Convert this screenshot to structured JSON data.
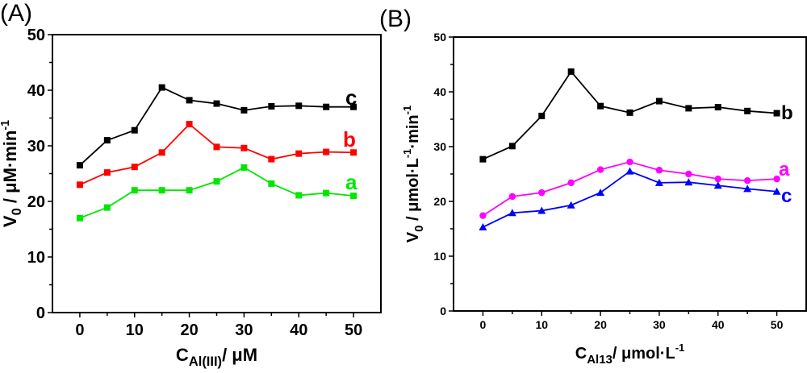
{
  "chart_data": [
    {
      "type": "line",
      "panel_label": "(A)",
      "xlabel": {
        "main": "C",
        "sub": "Al(III)",
        "rest": "/ μM"
      },
      "ylabel": {
        "main": "V",
        "sub": "0",
        "rest": " / μM·min",
        "sup": "-1"
      },
      "xlim": [
        -5,
        55
      ],
      "ylim": [
        0,
        50
      ],
      "xticks": [
        0,
        10,
        20,
        30,
        40,
        50
      ],
      "yticks": [
        0,
        10,
        20,
        30,
        40,
        50
      ],
      "x": [
        0,
        5,
        10,
        15,
        20,
        25,
        30,
        35,
        40,
        45,
        50
      ],
      "series": [
        {
          "name": "c",
          "color": "#000000",
          "marker": "square",
          "values": [
            26.5,
            31,
            32.8,
            40.5,
            38.2,
            37.6,
            36.4,
            37.1,
            37.2,
            37,
            37
          ]
        },
        {
          "name": "b",
          "color": "#ff0000",
          "marker": "square",
          "values": [
            23,
            25.2,
            26.2,
            28.8,
            33.9,
            29.8,
            29.6,
            27.6,
            28.6,
            28.9,
            28.8
          ]
        },
        {
          "name": "a",
          "color": "#00e600",
          "marker": "square",
          "values": [
            17,
            18.9,
            22,
            22,
            22,
            23.6,
            26.1,
            23.2,
            21.1,
            21.5,
            21
          ]
        }
      ]
    },
    {
      "type": "line",
      "panel_label": "(B)",
      "xlabel": {
        "main": "C",
        "sub": "Al13",
        "rest": "/ μmol·L",
        "sup": "-1"
      },
      "ylabel": {
        "main": "V",
        "sub": "0",
        "rest": " / μmol·L",
        "sup": "-1",
        "rest2": "·min",
        "sup2": "-1"
      },
      "xlim": [
        -5,
        55
      ],
      "ylim": [
        0,
        50
      ],
      "xticks": [
        0,
        10,
        20,
        30,
        40,
        50
      ],
      "yticks": [
        0,
        10,
        20,
        30,
        40,
        50
      ],
      "x": [
        0,
        5,
        10,
        15,
        20,
        25,
        30,
        35,
        40,
        45,
        50
      ],
      "series": [
        {
          "name": "b",
          "color": "#000000",
          "marker": "square",
          "values": [
            27.7,
            30.1,
            35.6,
            43.7,
            37.4,
            36.2,
            38.3,
            37,
            37.2,
            36.5,
            36.1
          ]
        },
        {
          "name": "a",
          "color": "#ff00ff",
          "marker": "circle",
          "values": [
            17.4,
            20.9,
            21.6,
            23.4,
            25.8,
            27.2,
            25.7,
            25,
            24.1,
            23.8,
            24.1
          ]
        },
        {
          "name": "c",
          "color": "#0000ff",
          "marker": "triangle",
          "values": [
            15.3,
            17.9,
            18.3,
            19.3,
            21.6,
            25.5,
            23.4,
            23.5,
            22.9,
            22.3,
            21.8
          ]
        }
      ]
    }
  ]
}
